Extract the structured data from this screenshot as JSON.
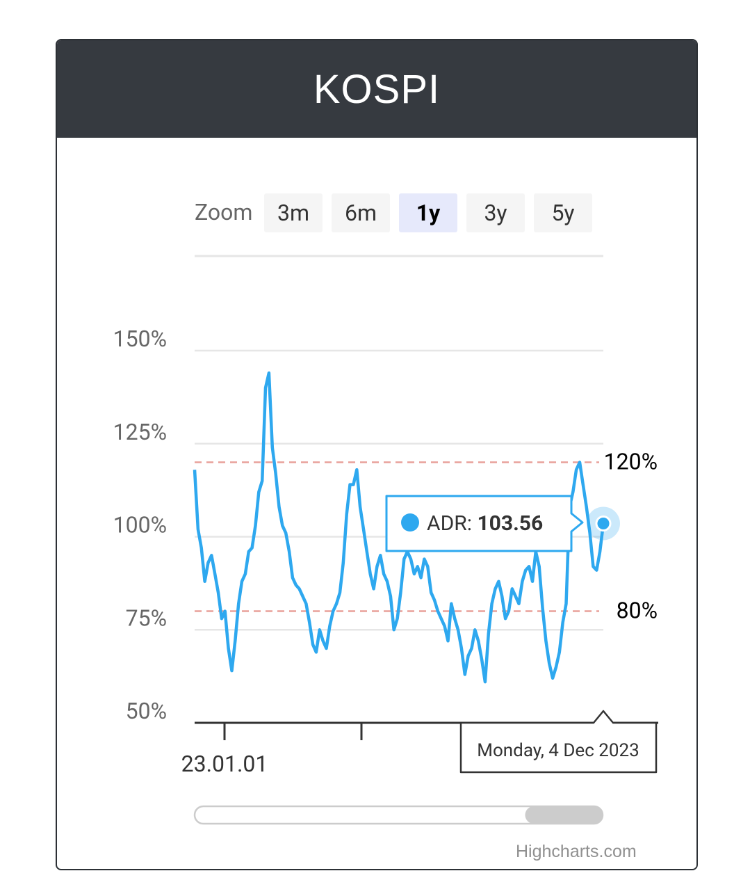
{
  "title": "KOSPI",
  "zoom": {
    "label": "Zoom",
    "buttons": [
      "3m",
      "6m",
      "1y",
      "3y",
      "5y"
    ],
    "selected": "1y"
  },
  "colors": {
    "header_bg": "#363a40",
    "series": "#2ea8ef",
    "plotline": "#e8a19a",
    "button_bg": "#f5f5f5",
    "button_selected_bg": "#e6e9fb",
    "grid": "#e6e6e6"
  },
  "chart_data": {
    "type": "line",
    "series": [
      {
        "name": "ADR",
        "values": [
          118,
          102,
          97,
          88,
          93,
          95,
          90,
          85,
          78,
          80,
          70,
          64,
          72,
          82,
          88,
          90,
          96,
          97,
          103,
          112,
          115,
          140,
          144,
          124,
          117,
          108,
          103,
          101,
          96,
          89,
          87,
          86,
          84,
          82,
          77,
          71,
          69,
          75,
          72,
          70,
          76,
          80,
          82,
          85,
          93,
          106,
          114,
          114,
          118,
          108,
          102,
          96,
          90,
          86,
          92,
          95,
          90,
          88,
          84,
          75,
          78,
          85,
          94,
          96,
          94,
          90,
          92,
          89,
          94,
          92,
          85,
          83,
          80,
          78,
          76,
          72,
          82,
          78,
          75,
          70,
          63,
          68,
          70,
          75,
          72,
          67,
          61,
          74,
          82,
          86,
          88,
          84,
          78,
          80,
          86,
          84,
          82,
          88,
          91,
          92,
          88,
          96,
          92,
          81,
          72,
          66,
          62,
          65,
          69,
          77,
          82,
          108,
          112,
          118,
          120,
          114,
          108,
          101,
          92,
          91,
          96,
          103.56
        ],
        "end_label": "103.56",
        "end_date": "Monday, 4 Dec 2023"
      }
    ],
    "y_ticks": [
      "150%",
      "125%",
      "100%",
      "75%",
      "50%"
    ],
    "y_values": [
      150,
      125,
      100,
      75,
      50
    ],
    "ylim": [
      50,
      150
    ],
    "plot_lines": [
      {
        "value": 120,
        "label": "120%"
      },
      {
        "value": 80,
        "label": "80%"
      }
    ],
    "x_tick_label": "23.01.01",
    "tooltip": {
      "series": "ADR",
      "value": "103.56"
    },
    "grid": true
  },
  "navigator": {
    "selection_fraction": [
      0.81,
      1.0
    ]
  },
  "credits": "Highcharts.com"
}
